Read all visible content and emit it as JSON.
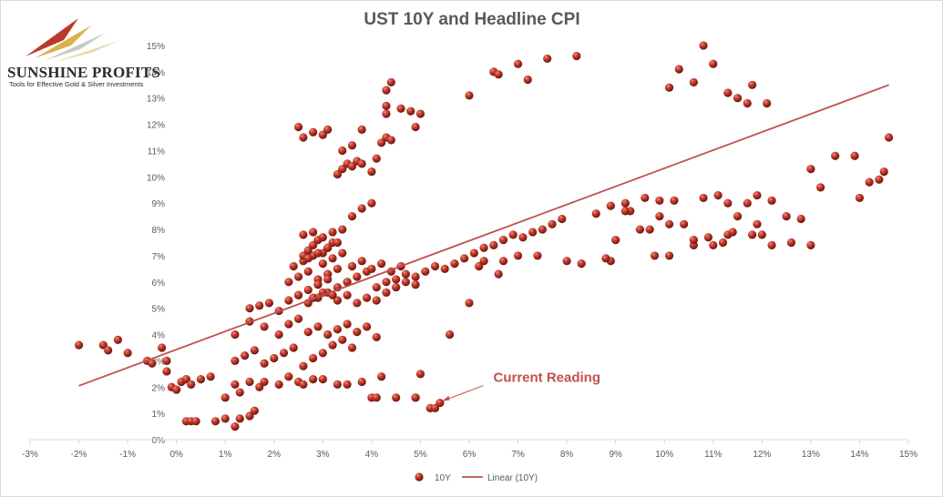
{
  "brand": {
    "name": "SUNSHINE PROFITS",
    "tagline": "Tools for Effective Gold & Silver Investments"
  },
  "chart_data": {
    "type": "scatter",
    "title": "UST 10Y and Headline CPI",
    "xlabel": "",
    "ylabel": "",
    "xlim": [
      -0.03,
      0.15
    ],
    "ylim": [
      0,
      0.15
    ],
    "x_ticks": [
      "-3%",
      "-2%",
      "-1%",
      "0%",
      "1%",
      "2%",
      "3%",
      "4%",
      "5%",
      "6%",
      "7%",
      "8%",
      "9%",
      "10%",
      "11%",
      "12%",
      "13%",
      "14%",
      "15%"
    ],
    "y_ticks": [
      "0%",
      "1%",
      "2%",
      "3%",
      "4%",
      "5%",
      "6%",
      "7%",
      "8%",
      "9%",
      "10%",
      "11%",
      "12%",
      "13%",
      "14%",
      "15%"
    ],
    "grid": false,
    "legend_position": "bottom",
    "colors": {
      "point": "#c0392b",
      "trend": "#c0504d",
      "text": "#595959",
      "axis": "#d9d9d9"
    },
    "series": [
      {
        "name": "10Y",
        "x": [
          -0.02,
          -0.015,
          -0.014,
          -0.012,
          -0.01,
          -0.006,
          -0.005,
          -0.003,
          -0.002,
          -0.002,
          -0.001,
          0.0,
          0.001,
          0.002,
          0.003,
          0.005,
          0.007,
          0.01,
          0.012,
          0.013,
          0.015,
          0.017,
          0.018,
          0.021,
          0.023,
          0.025,
          0.026,
          0.028,
          0.03,
          0.033,
          0.035,
          0.038,
          0.04,
          0.042,
          0.045,
          0.049,
          0.05,
          0.052,
          0.054,
          0.056,
          0.06,
          0.062,
          0.063,
          0.066,
          0.067,
          0.07,
          0.074,
          0.08,
          0.083,
          0.089,
          0.092,
          0.095,
          0.098,
          0.101,
          0.106,
          0.11,
          0.113,
          0.118,
          0.122,
          0.126,
          0.13,
          0.139,
          0.142,
          0.145,
          0.146,
          0.002,
          0.003,
          0.004,
          0.008,
          0.01,
          0.012,
          0.013,
          0.015,
          0.016,
          0.053,
          0.049,
          0.041,
          0.012,
          0.014,
          0.016,
          0.018,
          0.02,
          0.022,
          0.024,
          0.026,
          0.028,
          0.03,
          0.032,
          0.034,
          0.036,
          0.012,
          0.015,
          0.018,
          0.021,
          0.023,
          0.025,
          0.027,
          0.029,
          0.031,
          0.033,
          0.035,
          0.037,
          0.039,
          0.041,
          0.015,
          0.017,
          0.019,
          0.021,
          0.023,
          0.025,
          0.027,
          0.029,
          0.031,
          0.033,
          0.035,
          0.037,
          0.039,
          0.041,
          0.043,
          0.045,
          0.047,
          0.049,
          0.051,
          0.053,
          0.055,
          0.057,
          0.059,
          0.061,
          0.063,
          0.065,
          0.067,
          0.069,
          0.071,
          0.073,
          0.075,
          0.077,
          0.079,
          0.023,
          0.025,
          0.027,
          0.029,
          0.031,
          0.033,
          0.035,
          0.037,
          0.039,
          0.041,
          0.043,
          0.045,
          0.047,
          0.049,
          0.024,
          0.026,
          0.028,
          0.03,
          0.032,
          0.034,
          0.036,
          0.038,
          0.04,
          0.042,
          0.044,
          0.046,
          0.026,
          0.027,
          0.028,
          0.029,
          0.03,
          0.031,
          0.032,
          0.026,
          0.028,
          0.03,
          0.032,
          0.034,
          0.027,
          0.029,
          0.031,
          0.033,
          0.027,
          0.029,
          0.031,
          0.033,
          0.035,
          0.025,
          0.028,
          0.03,
          0.032,
          0.033,
          0.034,
          0.035,
          0.036,
          0.037,
          0.038,
          0.04,
          0.041,
          0.042,
          0.043,
          0.044,
          0.036,
          0.038,
          0.04,
          0.025,
          0.026,
          0.028,
          0.03,
          0.031,
          0.034,
          0.036,
          0.038,
          0.043,
          0.043,
          0.043,
          0.044,
          0.046,
          0.048,
          0.049,
          0.05,
          0.065,
          0.066,
          0.07,
          0.072,
          0.076,
          0.082,
          0.06,
          0.101,
          0.103,
          0.106,
          0.108,
          0.11,
          0.113,
          0.115,
          0.117,
          0.118,
          0.121,
          0.088,
          0.09,
          0.093,
          0.097,
          0.099,
          0.102,
          0.104,
          0.106,
          0.109,
          0.112,
          0.114,
          0.117,
          0.119,
          0.12,
          0.086,
          0.089,
          0.092,
          0.096,
          0.099,
          0.101,
          0.108,
          0.111,
          0.113,
          0.115,
          0.119,
          0.122,
          0.125,
          0.128,
          0.13,
          0.132,
          0.135,
          0.14,
          0.144
        ],
        "y": [
          0.036,
          0.036,
          0.034,
          0.038,
          0.033,
          0.03,
          0.029,
          0.035,
          0.03,
          0.026,
          0.02,
          0.019,
          0.022,
          0.023,
          0.021,
          0.023,
          0.024,
          0.016,
          0.021,
          0.018,
          0.022,
          0.02,
          0.022,
          0.021,
          0.024,
          0.022,
          0.021,
          0.023,
          0.023,
          0.021,
          0.021,
          0.022,
          0.016,
          0.024,
          0.016,
          0.016,
          0.025,
          0.012,
          0.014,
          0.04,
          0.052,
          0.066,
          0.068,
          0.063,
          0.068,
          0.07,
          0.07,
          0.068,
          0.067,
          0.068,
          0.09,
          0.08,
          0.07,
          0.07,
          0.074,
          0.074,
          0.078,
          0.078,
          0.074,
          0.075,
          0.103,
          0.108,
          0.098,
          0.102,
          0.115,
          0.007,
          0.007,
          0.007,
          0.007,
          0.008,
          0.005,
          0.008,
          0.009,
          0.011,
          0.012,
          0.016,
          0.016,
          0.03,
          0.032,
          0.034,
          0.029,
          0.031,
          0.033,
          0.035,
          0.028,
          0.031,
          0.033,
          0.036,
          0.038,
          0.035,
          0.04,
          0.045,
          0.043,
          0.04,
          0.044,
          0.046,
          0.041,
          0.043,
          0.04,
          0.042,
          0.044,
          0.041,
          0.043,
          0.039,
          0.05,
          0.051,
          0.052,
          0.049,
          0.053,
          0.055,
          0.052,
          0.054,
          0.056,
          0.053,
          0.055,
          0.052,
          0.054,
          0.053,
          0.056,
          0.058,
          0.06,
          0.062,
          0.064,
          0.066,
          0.065,
          0.067,
          0.069,
          0.071,
          0.073,
          0.074,
          0.076,
          0.078,
          0.077,
          0.079,
          0.08,
          0.082,
          0.084,
          0.06,
          0.062,
          0.064,
          0.061,
          0.063,
          0.065,
          0.06,
          0.062,
          0.064,
          0.058,
          0.06,
          0.061,
          0.063,
          0.059,
          0.066,
          0.068,
          0.07,
          0.067,
          0.069,
          0.071,
          0.066,
          0.068,
          0.065,
          0.067,
          0.064,
          0.066,
          0.07,
          0.072,
          0.074,
          0.076,
          0.071,
          0.073,
          0.075,
          0.078,
          0.079,
          0.077,
          0.079,
          0.08,
          0.069,
          0.071,
          0.073,
          0.075,
          0.057,
          0.059,
          0.061,
          0.058,
          0.06,
          0.055,
          0.054,
          0.056,
          0.055,
          0.101,
          0.103,
          0.105,
          0.104,
          0.106,
          0.105,
          0.102,
          0.107,
          0.113,
          0.115,
          0.114,
          0.085,
          0.088,
          0.09,
          0.119,
          0.115,
          0.117,
          0.116,
          0.118,
          0.11,
          0.112,
          0.118,
          0.124,
          0.127,
          0.133,
          0.136,
          0.126,
          0.125,
          0.119,
          0.124,
          0.14,
          0.139,
          0.143,
          0.137,
          0.145,
          0.146,
          0.131,
          0.134,
          0.141,
          0.136,
          0.15,
          0.143,
          0.132,
          0.13,
          0.128,
          0.135,
          0.128,
          0.069,
          0.076,
          0.087,
          0.08,
          0.085,
          0.091,
          0.082,
          0.076,
          0.077,
          0.075,
          0.079,
          0.09,
          0.082,
          0.078,
          0.086,
          0.089,
          0.087,
          0.092,
          0.091,
          0.082,
          0.092,
          0.093,
          0.09,
          0.085,
          0.093,
          0.091,
          0.085,
          0.084,
          0.074,
          0.096,
          0.108,
          0.092,
          0.099
        ]
      },
      {
        "name": "Linear (10Y)",
        "x": [
          -0.02,
          0.146
        ],
        "y": [
          0.0205,
          0.135
        ]
      }
    ],
    "annotations": [
      {
        "text": "Current Reading",
        "x": 0.053,
        "y": 0.014
      }
    ]
  }
}
